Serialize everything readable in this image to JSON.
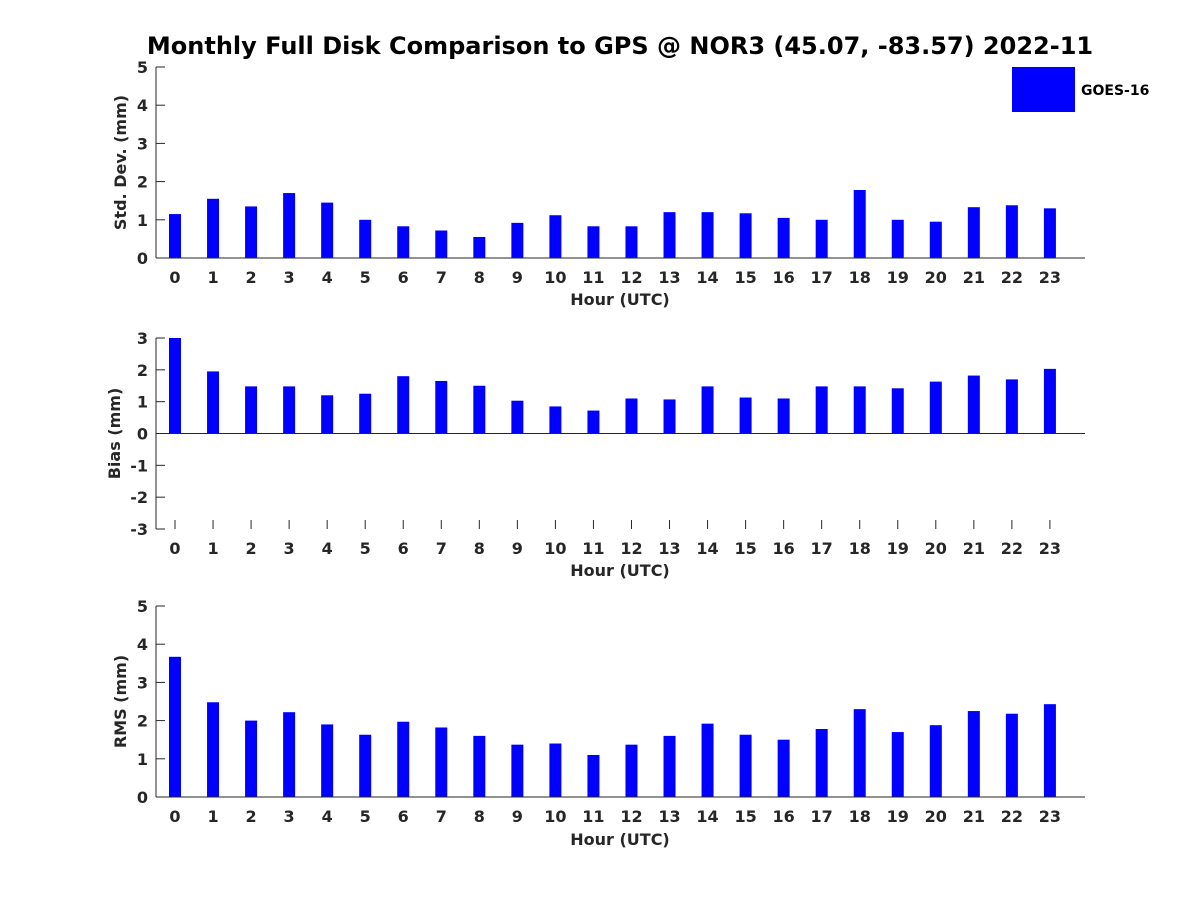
{
  "title": "Monthly Full Disk Comparison to GPS @ NOR3 (45.07, -83.57) 2022-11",
  "legend": {
    "label": "GOES-16",
    "color": "#0000ff",
    "position": "top-right"
  },
  "chart_data": [
    {
      "type": "bar",
      "title": "",
      "xlabel": "Hour (UTC)",
      "ylabel": "Std. Dev. (mm)",
      "categories": [
        "0",
        "1",
        "2",
        "3",
        "4",
        "5",
        "6",
        "7",
        "8",
        "9",
        "10",
        "11",
        "12",
        "13",
        "14",
        "15",
        "16",
        "17",
        "18",
        "19",
        "20",
        "21",
        "22",
        "23"
      ],
      "series": [
        {
          "name": "GOES-16",
          "color": "#0000ff",
          "values": [
            1.15,
            1.55,
            1.35,
            1.7,
            1.45,
            1.0,
            0.83,
            0.72,
            0.55,
            0.92,
            1.12,
            0.83,
            0.83,
            1.2,
            1.2,
            1.17,
            1.05,
            1.0,
            1.78,
            1.0,
            0.95,
            1.33,
            1.38,
            1.3
          ]
        }
      ],
      "ylim": [
        0,
        5
      ],
      "yticks": [
        0,
        1,
        2,
        3,
        4,
        5
      ],
      "grid": false
    },
    {
      "type": "bar",
      "title": "",
      "xlabel": "Hour (UTC)",
      "ylabel": "Bias (mm)",
      "categories": [
        "0",
        "1",
        "2",
        "3",
        "4",
        "5",
        "6",
        "7",
        "8",
        "9",
        "10",
        "11",
        "12",
        "13",
        "14",
        "15",
        "16",
        "17",
        "18",
        "19",
        "20",
        "21",
        "22",
        "23"
      ],
      "series": [
        {
          "name": "GOES-16",
          "color": "#0000ff",
          "values": [
            3.0,
            1.95,
            1.48,
            1.48,
            1.2,
            1.25,
            1.8,
            1.65,
            1.5,
            1.03,
            0.85,
            0.72,
            1.1,
            1.07,
            1.48,
            1.13,
            1.1,
            1.48,
            1.48,
            1.42,
            1.63,
            1.82,
            1.7,
            2.03
          ]
        }
      ],
      "ylim": [
        -3,
        3
      ],
      "yticks": [
        -3,
        -2,
        -1,
        0,
        1,
        2,
        3
      ],
      "grid": false
    },
    {
      "type": "bar",
      "title": "",
      "xlabel": "Hour (UTC)",
      "ylabel": "RMS (mm)",
      "categories": [
        "0",
        "1",
        "2",
        "3",
        "4",
        "5",
        "6",
        "7",
        "8",
        "9",
        "10",
        "11",
        "12",
        "13",
        "14",
        "15",
        "16",
        "17",
        "18",
        "19",
        "20",
        "21",
        "22",
        "23"
      ],
      "series": [
        {
          "name": "GOES-16",
          "color": "#0000ff",
          "values": [
            3.67,
            2.48,
            2.0,
            2.22,
            1.9,
            1.63,
            1.97,
            1.82,
            1.6,
            1.37,
            1.4,
            1.1,
            1.37,
            1.6,
            1.92,
            1.63,
            1.5,
            1.78,
            2.3,
            1.7,
            1.88,
            2.25,
            2.18,
            2.43
          ]
        }
      ],
      "ylim": [
        0,
        5
      ],
      "yticks": [
        0,
        1,
        2,
        3,
        4,
        5
      ],
      "grid": false
    }
  ]
}
